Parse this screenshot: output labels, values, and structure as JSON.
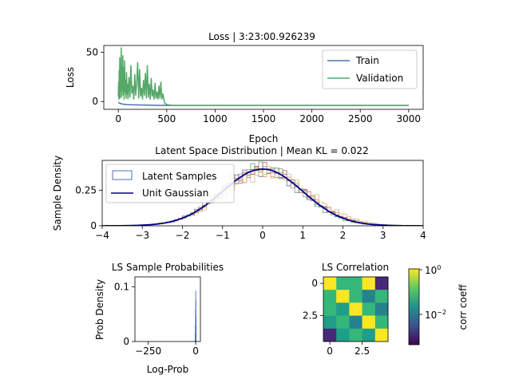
{
  "chart_data": [
    {
      "type": "line",
      "title": "Loss | 3:23:00.926239",
      "xlabel": "Epoch",
      "ylabel": "Loss",
      "xlim": [
        -150,
        3150
      ],
      "ylim": [
        -8,
        57
      ],
      "xticks": [
        0,
        500,
        1000,
        1500,
        2000,
        2500,
        3000
      ],
      "yticks": [
        0,
        50
      ],
      "grid": false,
      "legend_position": "top-right",
      "series": [
        {
          "name": "Train",
          "color": "#4c72b0",
          "x": [
            0,
            20,
            40,
            60,
            80,
            100,
            150,
            200,
            250,
            300,
            350,
            400,
            450,
            500,
            600,
            800,
            1000,
            1500,
            2000,
            2500,
            3000
          ],
          "y": [
            -1,
            -2,
            -2.5,
            -3,
            -3,
            -3.2,
            -3.4,
            -3.5,
            -3.6,
            -3.7,
            -3.8,
            -3.9,
            -4,
            -4,
            -4,
            -4,
            -4,
            -4,
            -4,
            -4,
            -4
          ]
        },
        {
          "name": "Validation",
          "color": "#55a868",
          "x": [
            0,
            3,
            6,
            9,
            12,
            15,
            18,
            22,
            26,
            30,
            34,
            38,
            42,
            46,
            50,
            55,
            60,
            65,
            70,
            75,
            80,
            85,
            90,
            95,
            100,
            110,
            120,
            130,
            140,
            150,
            160,
            170,
            180,
            190,
            200,
            210,
            220,
            230,
            240,
            250,
            260,
            270,
            280,
            290,
            300,
            310,
            320,
            330,
            340,
            350,
            360,
            370,
            380,
            390,
            400,
            410,
            420,
            430,
            440,
            450,
            460,
            480,
            500,
            520,
            560,
            600,
            800,
            1000,
            1500,
            2000,
            2500,
            3000
          ],
          "y": [
            5,
            20,
            2,
            32,
            8,
            45,
            3,
            38,
            10,
            55,
            4,
            28,
            12,
            47,
            6,
            35,
            2,
            42,
            9,
            22,
            3,
            30,
            7,
            18,
            2,
            25,
            4,
            37,
            8,
            16,
            2,
            28,
            6,
            20,
            40,
            3,
            33,
            5,
            14,
            2,
            22,
            6,
            29,
            3,
            37,
            4,
            18,
            2,
            24,
            5,
            12,
            2,
            19,
            3,
            10,
            2,
            16,
            3,
            20,
            2,
            8,
            -2,
            -3,
            -3.5,
            -4,
            -4,
            -4,
            -4,
            -4,
            -4,
            -4,
            -4
          ]
        }
      ]
    },
    {
      "type": "histogram",
      "title": "Latent Space Distribution | Mean KL = 0.022",
      "xlabel": "",
      "ylabel": "Sample Density",
      "xlim": [
        -4,
        4
      ],
      "ylim": [
        0,
        0.46
      ],
      "xticks": [
        -4,
        -3,
        -2,
        -1,
        0,
        1,
        2,
        3,
        4
      ],
      "yticks": [
        0.0,
        0.25
      ],
      "legend_position": "top-left",
      "legend": [
        {
          "name": "Latent Samples",
          "style": "step",
          "color": "#4c72b0"
        },
        {
          "name": "Unit Gaussian",
          "style": "line",
          "color": "#00008b"
        }
      ],
      "series": [
        {
          "color": "#4c72b0",
          "mean": 0.0,
          "std": 1.0
        },
        {
          "color": "#dd8452",
          "mean": 0.05,
          "std": 1.03
        },
        {
          "color": "#55a868",
          "mean": -0.05,
          "std": 0.98
        },
        {
          "color": "#c44e52",
          "mean": 0.02,
          "std": 1.01
        },
        {
          "color": "#ccb974",
          "mean": 0.12,
          "std": 1.08
        }
      ],
      "reference_curve": {
        "name": "Unit Gaussian",
        "mean": 0,
        "std": 1,
        "color": "#00008b"
      }
    },
    {
      "type": "histogram",
      "title": "LS Sample Probabilities",
      "xlabel": "Log-Prob",
      "ylabel": "Prob Density",
      "xlim": [
        -320,
        25
      ],
      "ylim": [
        0,
        0.118
      ],
      "xticks": [
        -250,
        0
      ],
      "yticks": [
        0.0,
        0.1
      ],
      "color": "#4c72b0",
      "bins": [
        {
          "x": -4,
          "y": 0.014
        },
        {
          "x": -3,
          "y": 0.03
        },
        {
          "x": -2,
          "y": 0.058
        },
        {
          "x": -1,
          "y": 0.093
        },
        {
          "x": 0,
          "y": 0.075
        },
        {
          "x": 1,
          "y": 0.045
        }
      ]
    },
    {
      "type": "heatmap",
      "title": "LS Correlation",
      "xticks": [
        0.0,
        2.5
      ],
      "yticks": [
        0.0,
        2.5
      ],
      "colorbar": {
        "label": "corr coeff",
        "scale": "log",
        "ticks": [
          "10^0",
          "10^-2"
        ]
      },
      "matrix": [
        [
          1.0,
          0.05,
          0.08,
          1.0,
          0.0005
        ],
        [
          0.05,
          1.0,
          0.06,
          0.01,
          0.09
        ],
        [
          0.07,
          0.02,
          1.0,
          0.08,
          0.01
        ],
        [
          0.04,
          0.06,
          0.01,
          1.0,
          0.07
        ],
        [
          0.0005,
          0.02,
          0.06,
          0.03,
          1.0
        ]
      ]
    }
  ]
}
